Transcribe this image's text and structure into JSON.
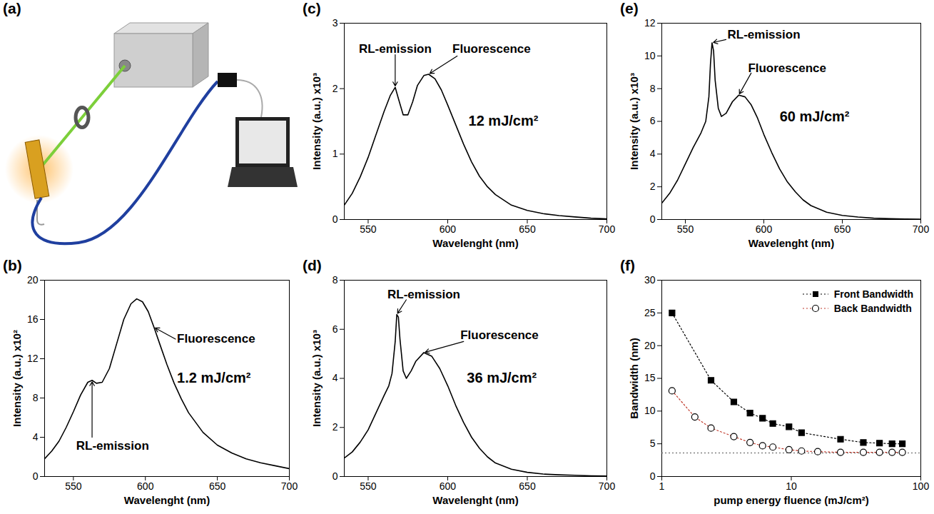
{
  "chart_data": [
    {
      "panel": "(a)",
      "type": "diagram"
    },
    {
      "panel": "(b)",
      "type": "line",
      "x_label": "Wavelenght (nm)",
      "y_label": "Intensity (a.u.) x10²",
      "annotations": {
        "rl": "RL-emission",
        "fluorescence": "Fluorescence",
        "fluence": "1.2 mJ/cm²"
      },
      "color": "#000000",
      "xlim": [
        530,
        700
      ],
      "ylim": [
        0,
        20
      ],
      "xticks": [
        550,
        600,
        650,
        700
      ],
      "yticks": [
        0,
        4,
        8,
        12,
        16,
        20
      ],
      "x": [
        530,
        535,
        540,
        545,
        550,
        555,
        560,
        563,
        566,
        570,
        575,
        580,
        585,
        590,
        594,
        598,
        602,
        606,
        610,
        615,
        620,
        625,
        630,
        640,
        650,
        660,
        670,
        680,
        690,
        700
      ],
      "values": [
        1.8,
        2.6,
        3.6,
        5.0,
        6.6,
        8.3,
        9.6,
        9.8,
        9.5,
        9.6,
        11.0,
        13.5,
        16.0,
        17.6,
        18.1,
        17.8,
        16.8,
        15.2,
        13.5,
        11.4,
        9.5,
        7.9,
        6.5,
        4.5,
        3.2,
        2.4,
        1.8,
        1.4,
        1.1,
        0.8
      ]
    },
    {
      "panel": "(c)",
      "type": "line",
      "x_label": "Wavelenght (nm)",
      "y_label": "Intensity (a.u.) x10³",
      "annotations": {
        "rl": "RL-emission",
        "fluorescence": "Fluorescence",
        "fluence": "12 mJ/cm²"
      },
      "color": "#000000",
      "xlim": [
        535,
        700
      ],
      "ylim": [
        0,
        3
      ],
      "xticks": [
        550,
        600,
        650,
        700
      ],
      "yticks": [
        0,
        1,
        2,
        3
      ],
      "x": [
        535,
        540,
        545,
        550,
        555,
        560,
        564,
        567,
        569,
        572,
        575,
        578,
        581,
        585,
        588,
        592,
        596,
        600,
        605,
        610,
        615,
        620,
        625,
        630,
        640,
        650,
        660,
        670,
        680,
        690,
        700
      ],
      "values": [
        0.22,
        0.4,
        0.65,
        0.95,
        1.3,
        1.65,
        1.9,
        2.02,
        1.85,
        1.6,
        1.6,
        1.8,
        2.05,
        2.2,
        2.22,
        2.15,
        1.98,
        1.75,
        1.45,
        1.15,
        0.88,
        0.66,
        0.5,
        0.38,
        0.22,
        0.14,
        0.09,
        0.06,
        0.04,
        0.02,
        0.01
      ]
    },
    {
      "panel": "(d)",
      "type": "line",
      "x_label": "Wavelenght (nm)",
      "y_label": "Intensity (a.u.) x10³",
      "annotations": {
        "rl": "RL-emission",
        "fluorescence": "Fluorescence",
        "fluence": "36 mJ/cm²"
      },
      "color": "#000000",
      "xlim": [
        535,
        700
      ],
      "ylim": [
        0,
        8
      ],
      "xticks": [
        550,
        600,
        650,
        700
      ],
      "yticks": [
        0,
        2,
        4,
        6,
        8
      ],
      "x": [
        535,
        540,
        545,
        550,
        555,
        560,
        563,
        565,
        567,
        568,
        569,
        570,
        572,
        574,
        577,
        580,
        585,
        590,
        595,
        600,
        605,
        610,
        615,
        620,
        625,
        630,
        640,
        650,
        660,
        670,
        680,
        690,
        700
      ],
      "values": [
        0.75,
        1.0,
        1.4,
        1.9,
        2.6,
        3.3,
        3.7,
        4.2,
        5.5,
        6.6,
        6.5,
        5.6,
        4.3,
        4.0,
        4.3,
        4.7,
        5.05,
        4.9,
        4.4,
        3.7,
        2.9,
        2.2,
        1.6,
        1.15,
        0.8,
        0.55,
        0.3,
        0.17,
        0.1,
        0.07,
        0.05,
        0.03,
        0.02
      ]
    },
    {
      "panel": "(e)",
      "type": "line",
      "x_label": "Wavelenght (nm)",
      "y_label": "Intensity (a.u.) x10³",
      "annotations": {
        "rl": "RL-emission",
        "fluorescence": "Fluorescence",
        "fluence": "60 mJ/cm²"
      },
      "color": "#000000",
      "xlim": [
        535,
        700
      ],
      "ylim": [
        0,
        12
      ],
      "xticks": [
        550,
        600,
        650,
        700
      ],
      "yticks": [
        0,
        2,
        4,
        6,
        8,
        10,
        12
      ],
      "x": [
        535,
        540,
        545,
        550,
        555,
        560,
        563,
        565,
        566,
        567,
        568,
        569,
        571,
        573,
        576,
        580,
        584,
        588,
        592,
        596,
        600,
        605,
        610,
        615,
        620,
        625,
        630,
        640,
        650,
        660,
        670,
        680,
        690,
        700
      ],
      "values": [
        1.0,
        1.6,
        2.4,
        3.4,
        4.4,
        5.3,
        6.0,
        7.5,
        9.5,
        10.8,
        10.3,
        8.5,
        6.8,
        6.3,
        6.5,
        7.2,
        7.6,
        7.5,
        7.0,
        6.2,
        5.2,
        4.1,
        3.1,
        2.3,
        1.7,
        1.2,
        0.85,
        0.45,
        0.25,
        0.15,
        0.08,
        0.05,
        0.03,
        0.02
      ]
    },
    {
      "panel": "(f)",
      "type": "line",
      "x_label": "pump energy fluence (mJ/cm²)",
      "y_label": "Bandwidth (nm)",
      "log": "x",
      "xlim": [
        1,
        100
      ],
      "ylim": [
        0,
        30
      ],
      "xticks": [
        1,
        10,
        100
      ],
      "yticks": [
        0,
        5,
        10,
        15,
        20,
        25,
        30
      ],
      "legend": "top-right",
      "hline": 3.6,
      "series": [
        {
          "name": "Front Bandwidth",
          "color": "#000000",
          "marker": "square",
          "line_style": "dotted",
          "x": [
            1.2,
            2.4,
            3.6,
            4.8,
            6,
            7.2,
            9.6,
            12,
            24,
            36,
            48,
            60,
            72
          ],
          "values": [
            25,
            14.7,
            11.4,
            9.7,
            8.9,
            8.1,
            7.6,
            6.7,
            5.7,
            5.2,
            5.1,
            5.0,
            5.0
          ]
        },
        {
          "name": "Back Bandwidth",
          "color": "#c0392b",
          "marker": "open-circle",
          "line_style": "dotted",
          "x": [
            1.2,
            1.8,
            2.4,
            3.6,
            4.8,
            6,
            7.2,
            9.6,
            12,
            16,
            24,
            36,
            48,
            60,
            72
          ],
          "values": [
            13.1,
            9.1,
            7.4,
            6.1,
            5.2,
            4.7,
            4.5,
            4.1,
            3.9,
            3.8,
            3.7,
            3.7,
            3.7,
            3.7,
            3.7
          ]
        }
      ]
    }
  ]
}
